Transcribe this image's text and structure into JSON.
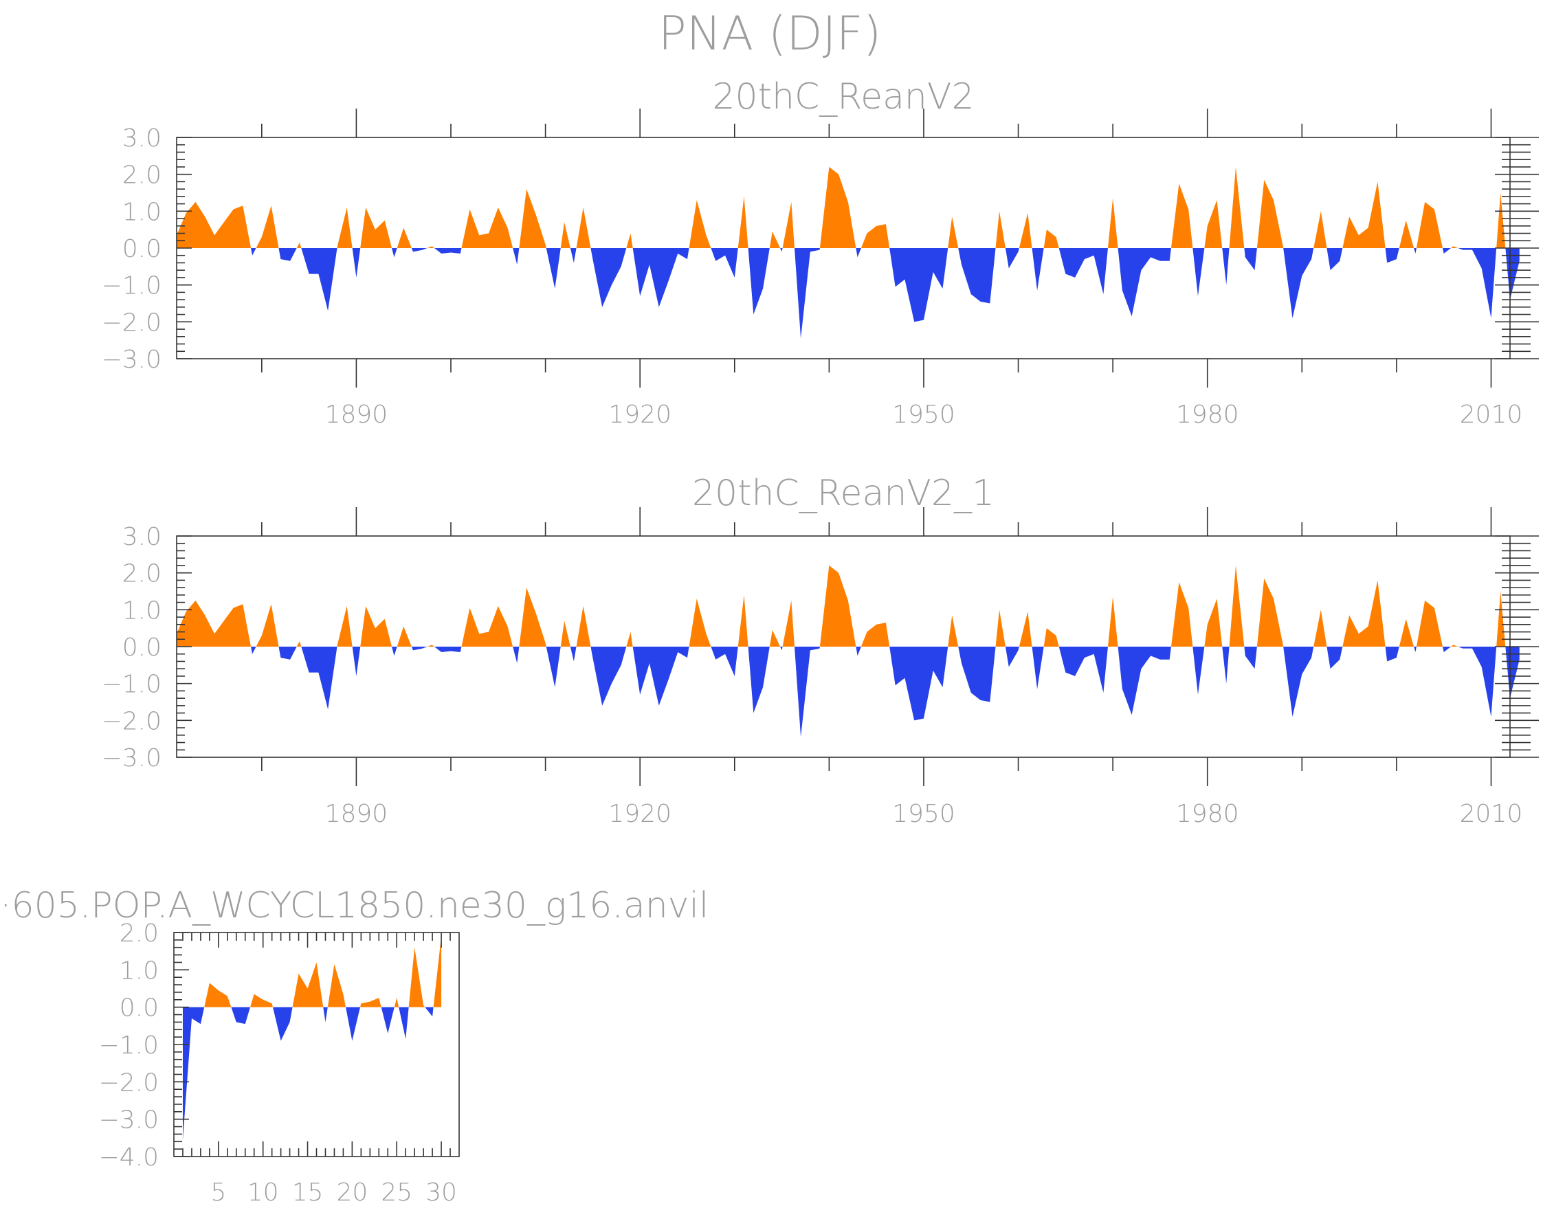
{
  "title": "PNA (DJF)",
  "colors": {
    "positive": "#ff8000",
    "negative": "#2842eb",
    "text": "#9e9e9e",
    "axis": "#333333"
  },
  "chart_data": [
    {
      "type": "area",
      "title": "20thC_ReanV2",
      "xlim": [
        1871,
        2012
      ],
      "ylim": [
        -3.0,
        3.0
      ],
      "xticks": [
        1890,
        1920,
        1950,
        1980,
        2010
      ],
      "xtick_labels": [
        "1890",
        "1920",
        "1950",
        "1980",
        "2010"
      ],
      "yticks": [
        3.0,
        2.0,
        1.0,
        0.0,
        -1.0,
        -2.0,
        -3.0
      ],
      "ytick_labels": [
        "3.0",
        "2.0",
        "1.0",
        "0.0",
        "−1.0",
        "−2.0",
        "−3.0"
      ],
      "x_start": 1871,
      "values": [
        0.35,
        0.95,
        1.25,
        0.85,
        0.35,
        0.7,
        1.05,
        1.15,
        -0.2,
        0.3,
        1.15,
        -0.3,
        -0.35,
        0.15,
        -0.7,
        -0.7,
        -1.7,
        0.05,
        1.1,
        -0.8,
        1.1,
        0.5,
        0.75,
        -0.25,
        0.55,
        -0.1,
        -0.05,
        0.05,
        -0.15,
        -0.12,
        -0.15,
        1.05,
        0.35,
        0.4,
        1.1,
        0.55,
        -0.45,
        1.6,
        0.9,
        0.1,
        -1.1,
        0.7,
        -0.4,
        1.1,
        -0.3,
        -1.6,
        -1.0,
        -0.5,
        0.4,
        -1.3,
        -0.45,
        -1.6,
        -0.9,
        -0.15,
        -0.3,
        1.3,
        0.35,
        -0.35,
        -0.2,
        -0.8,
        1.4,
        -1.8,
        -1.1,
        0.45,
        -0.1,
        1.25,
        -2.45,
        -0.1,
        -0.05,
        2.2,
        2.0,
        1.25,
        -0.25,
        0.4,
        0.6,
        0.65,
        -1.05,
        -0.85,
        -2.0,
        -1.95,
        -0.65,
        -1.1,
        0.85,
        -0.45,
        -1.25,
        -1.45,
        -1.5,
        1.0,
        -0.55,
        -0.1,
        0.95,
        -1.15,
        0.5,
        0.3,
        -0.7,
        -0.8,
        -0.3,
        -0.2,
        -1.25,
        1.35,
        -1.15,
        -1.85,
        -0.6,
        -0.25,
        -0.35,
        -0.35,
        1.75,
        1.05,
        -1.3,
        0.6,
        1.3,
        -1.0,
        2.2,
        -0.25,
        -0.6,
        1.85,
        1.3,
        0.05,
        -1.9,
        -0.75,
        -0.3,
        1.0,
        -0.6,
        -0.35,
        0.85,
        0.35,
        0.55,
        1.8,
        -0.4,
        -0.3,
        0.75,
        -0.15,
        1.25,
        1.05,
        -0.15,
        0.05,
        -0.05,
        -0.05,
        -0.55,
        -1.9,
        1.5,
        -1.4,
        -0.35
      ]
    },
    {
      "type": "area",
      "title": "20thC_ReanV2_1",
      "xlim": [
        1871,
        2012
      ],
      "ylim": [
        -3.0,
        3.0
      ],
      "xticks": [
        1890,
        1920,
        1950,
        1980,
        2010
      ],
      "xtick_labels": [
        "1890",
        "1920",
        "1950",
        "1980",
        "2010"
      ],
      "yticks": [
        3.0,
        2.0,
        1.0,
        0.0,
        -1.0,
        -2.0,
        -3.0
      ],
      "ytick_labels": [
        "3.0",
        "2.0",
        "1.0",
        "0.0",
        "−1.0",
        "−2.0",
        "−3.0"
      ],
      "x_start": 1871,
      "values": [
        0.35,
        0.95,
        1.25,
        0.85,
        0.35,
        0.7,
        1.05,
        1.15,
        -0.2,
        0.3,
        1.15,
        -0.3,
        -0.35,
        0.15,
        -0.7,
        -0.7,
        -1.7,
        0.05,
        1.1,
        -0.8,
        1.1,
        0.5,
        0.75,
        -0.25,
        0.55,
        -0.1,
        -0.05,
        0.05,
        -0.15,
        -0.12,
        -0.15,
        1.05,
        0.35,
        0.4,
        1.1,
        0.55,
        -0.45,
        1.6,
        0.9,
        0.1,
        -1.1,
        0.7,
        -0.4,
        1.1,
        -0.3,
        -1.6,
        -1.0,
        -0.5,
        0.4,
        -1.3,
        -0.45,
        -1.6,
        -0.9,
        -0.15,
        -0.3,
        1.3,
        0.35,
        -0.35,
        -0.2,
        -0.8,
        1.4,
        -1.8,
        -1.1,
        0.45,
        -0.1,
        1.25,
        -2.45,
        -0.1,
        -0.05,
        2.2,
        2.0,
        1.25,
        -0.25,
        0.4,
        0.6,
        0.65,
        -1.05,
        -0.85,
        -2.0,
        -1.95,
        -0.65,
        -1.1,
        0.85,
        -0.45,
        -1.25,
        -1.45,
        -1.5,
        1.0,
        -0.55,
        -0.1,
        0.95,
        -1.15,
        0.5,
        0.3,
        -0.7,
        -0.8,
        -0.3,
        -0.2,
        -1.25,
        1.35,
        -1.15,
        -1.85,
        -0.6,
        -0.25,
        -0.35,
        -0.35,
        1.75,
        1.05,
        -1.3,
        0.6,
        1.3,
        -1.0,
        2.2,
        -0.25,
        -0.6,
        1.85,
        1.3,
        0.05,
        -1.9,
        -0.75,
        -0.3,
        1.0,
        -0.6,
        -0.35,
        0.85,
        0.35,
        0.55,
        1.8,
        -0.4,
        -0.3,
        0.75,
        -0.15,
        1.25,
        1.05,
        -0.15,
        0.05,
        -0.05,
        -0.05,
        -0.55,
        -1.9,
        1.5,
        -1.4,
        -0.35
      ]
    },
    {
      "type": "area",
      "title": "·605.POP.A_WCYCL1850.ne30_g16.anvil",
      "xlim": [
        0,
        32
      ],
      "ylim": [
        -4.0,
        2.0
      ],
      "xticks": [
        5,
        10,
        15,
        20,
        25,
        30
      ],
      "xtick_labels": [
        "5",
        "10",
        "15",
        "20",
        "25",
        "30"
      ],
      "yticks": [
        2.0,
        1.0,
        0.0,
        -1.0,
        -2.0,
        -3.0,
        -4.0
      ],
      "ytick_labels": [
        "2.0",
        "1.0",
        "0.0",
        "−1.0",
        "−2.0",
        "−3.0",
        "−4.0"
      ],
      "x_start": 1,
      "values": [
        -3.55,
        -0.3,
        -0.45,
        0.65,
        0.45,
        0.3,
        -0.4,
        -0.45,
        0.35,
        0.2,
        0.1,
        -0.9,
        -0.4,
        0.9,
        0.5,
        1.2,
        -0.4,
        1.15,
        0.35,
        -0.9,
        0.1,
        0.15,
        0.25,
        -0.7,
        0.25,
        -0.85,
        1.6,
        0.05,
        -0.25,
        1.9
      ]
    }
  ]
}
